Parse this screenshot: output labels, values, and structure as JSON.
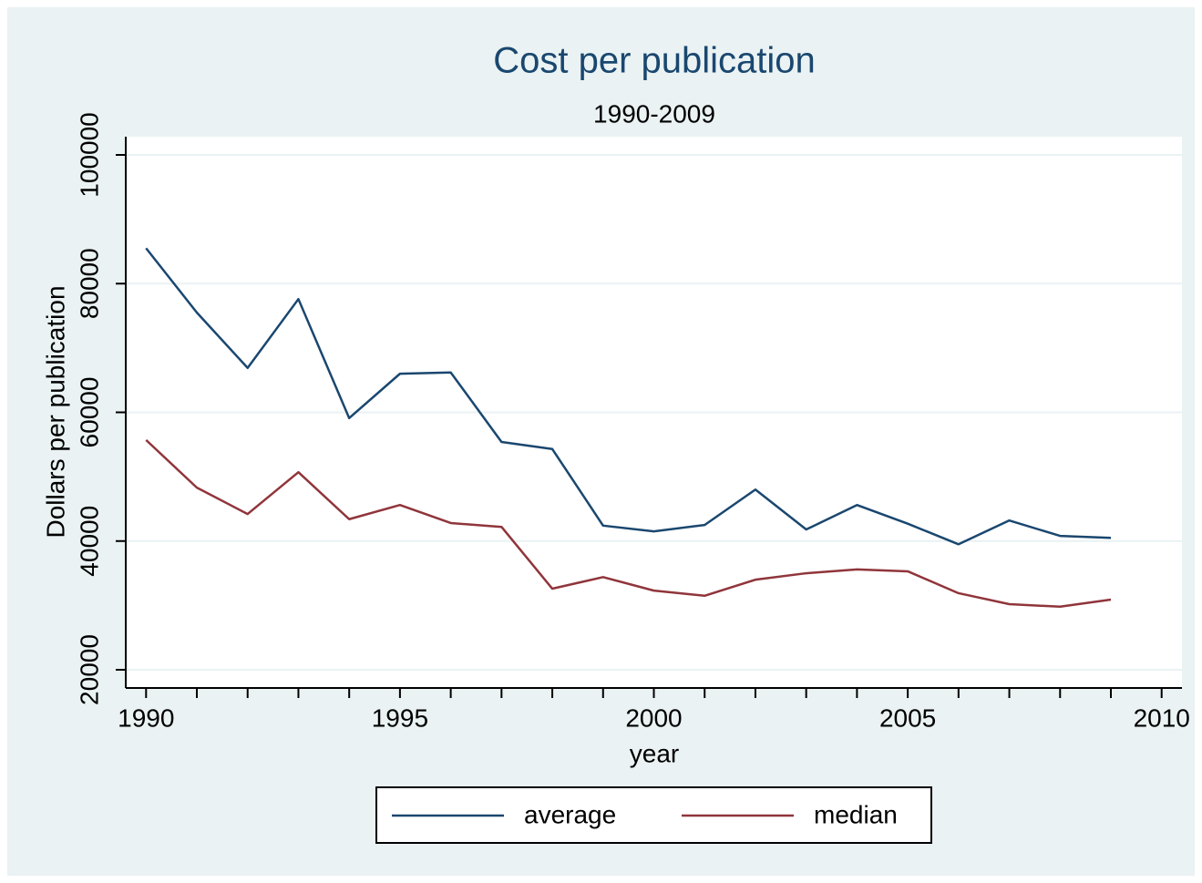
{
  "chart_data": {
    "type": "line",
    "title": "Cost per publication",
    "subtitle": "1990-2009",
    "x_label": "year",
    "y_label": "Dollars per publication",
    "x": [
      1990,
      1991,
      1992,
      1993,
      1994,
      1995,
      1996,
      1997,
      1998,
      1999,
      2000,
      2001,
      2002,
      2003,
      2004,
      2005,
      2006,
      2007,
      2008,
      2009
    ],
    "series": [
      {
        "name": "average",
        "color": "#1a476f",
        "values": [
          85500,
          75500,
          66900,
          77600,
          59100,
          66000,
          66200,
          55400,
          54300,
          42400,
          41500,
          42500,
          48000,
          41800,
          45600,
          42700,
          39500,
          43200,
          40800,
          40500
        ]
      },
      {
        "name": "median",
        "color": "#90353b",
        "values": [
          55700,
          48300,
          44200,
          50700,
          43400,
          45600,
          42800,
          42200,
          32600,
          34400,
          32300,
          31500,
          34000,
          35000,
          35600,
          35300,
          31900,
          30200,
          29800,
          30900
        ]
      }
    ],
    "xlim": [
      1989.6,
      2010.4
    ],
    "xticks": [
      1990,
      1995,
      2000,
      2005,
      2010
    ],
    "xminorticks": [
      1991,
      1992,
      1993,
      1994,
      1996,
      1997,
      1998,
      1999,
      2001,
      2002,
      2003,
      2004,
      2006,
      2007,
      2008,
      2009
    ],
    "ylim": [
      17170,
      102830
    ],
    "yticks": [
      20000,
      40000,
      60000,
      80000,
      100000
    ],
    "grid": true,
    "legend": "bottom"
  }
}
